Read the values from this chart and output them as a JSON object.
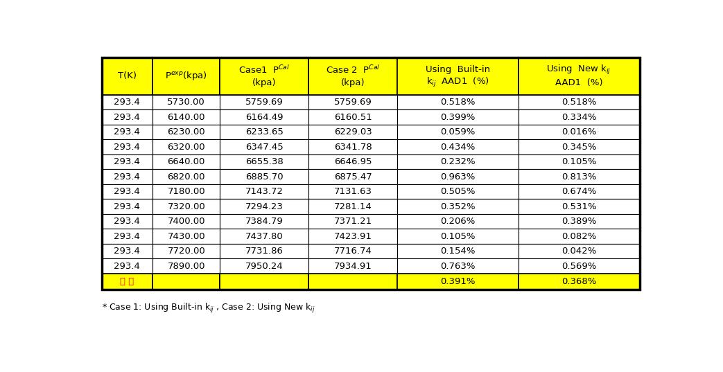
{
  "data_rows": [
    [
      "293.4",
      "5730.00",
      "5759.69",
      "5759.69",
      "0.518%",
      "0.518%"
    ],
    [
      "293.4",
      "6140.00",
      "6164.49",
      "6160.51",
      "0.399%",
      "0.334%"
    ],
    [
      "293.4",
      "6230.00",
      "6233.65",
      "6229.03",
      "0.059%",
      "0.016%"
    ],
    [
      "293.4",
      "6320.00",
      "6347.45",
      "6341.78",
      "0.434%",
      "0.345%"
    ],
    [
      "293.4",
      "6640.00",
      "6655.38",
      "6646.95",
      "0.232%",
      "0.105%"
    ],
    [
      "293.4",
      "6820.00",
      "6885.70",
      "6875.47",
      "0.963%",
      "0.813%"
    ],
    [
      "293.4",
      "7180.00",
      "7143.72",
      "7131.63",
      "0.505%",
      "0.674%"
    ],
    [
      "293.4",
      "7320.00",
      "7294.23",
      "7281.14",
      "0.352%",
      "0.531%"
    ],
    [
      "293.4",
      "7400.00",
      "7384.79",
      "7371.21",
      "0.206%",
      "0.389%"
    ],
    [
      "293.4",
      "7430.00",
      "7437.80",
      "7423.91",
      "0.105%",
      "0.082%"
    ],
    [
      "293.4",
      "7720.00",
      "7731.86",
      "7716.74",
      "0.154%",
      "0.042%"
    ],
    [
      "293.4",
      "7890.00",
      "7950.24",
      "7934.91",
      "0.763%",
      "0.569%"
    ]
  ],
  "avg_row": [
    "평 균",
    "",
    "",
    "",
    "0.391%",
    "0.368%"
  ],
  "header_bg": "#FFFF00",
  "avg_bg": "#FFFF00",
  "data_bg": "#FFFFFF",
  "data_bg_alt": "#EEF0FF",
  "border_color": "#000000",
  "text_color": "#000000",
  "avg_text_color": "#FF0000",
  "fig_width": 10.43,
  "fig_height": 5.37,
  "footnote": "* Case 1: Using Built-in k$_{ij}$ , Case 2: Using New k$_{ij}$"
}
